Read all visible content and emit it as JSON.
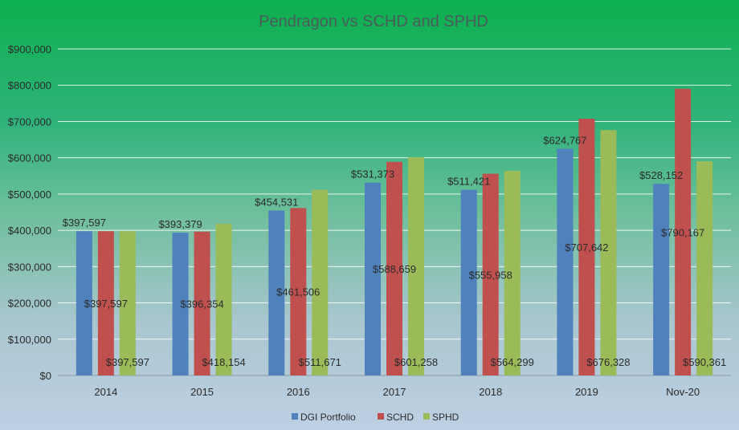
{
  "chart_data": {
    "type": "bar",
    "title": "Pendragon vs SCHD and SPHD",
    "categories": [
      "2014",
      "2015",
      "2016",
      "2017",
      "2018",
      "2019",
      "Nov-20"
    ],
    "series": [
      {
        "name": "DGI Portfolio",
        "color": "#4f81bd",
        "values": [
          397597,
          393379,
          454531,
          531373,
          511421,
          624767,
          528152
        ]
      },
      {
        "name": "SCHD",
        "color": "#c0504d",
        "values": [
          397597,
          396354,
          461506,
          588659,
          555958,
          707642,
          790167
        ]
      },
      {
        "name": "SPHD",
        "color": "#9bbb59",
        "values": [
          397597,
          418154,
          511671,
          601258,
          564299,
          676328,
          590361
        ]
      }
    ],
    "data_labels": {
      "DGI Portfolio": [
        "$397,597",
        "$393,379",
        "$454,531",
        "$531,373",
        "$511,421",
        "$624,767",
        "$528,152"
      ],
      "SCHD": [
        "$397,597",
        "$396,354",
        "$461,506",
        "$588,659",
        "$555,958",
        "$707,642",
        "$790,167"
      ],
      "SPHD": [
        "$397,597",
        "$418,154",
        "$511,671",
        "$601,258",
        "$564,299",
        "$676,328",
        "$590,361"
      ]
    },
    "y_ticks": [
      0,
      100000,
      200000,
      300000,
      400000,
      500000,
      600000,
      700000,
      800000,
      900000
    ],
    "y_tick_labels": [
      "$0",
      "$100,000",
      "$200,000",
      "$300,000",
      "$400,000",
      "$500,000",
      "$600,000",
      "$700,000",
      "$800,000",
      "$900,000"
    ],
    "ylim": [
      0,
      900000
    ],
    "xlabel": "",
    "ylabel": "",
    "grid": true,
    "legend_position": "bottom"
  }
}
